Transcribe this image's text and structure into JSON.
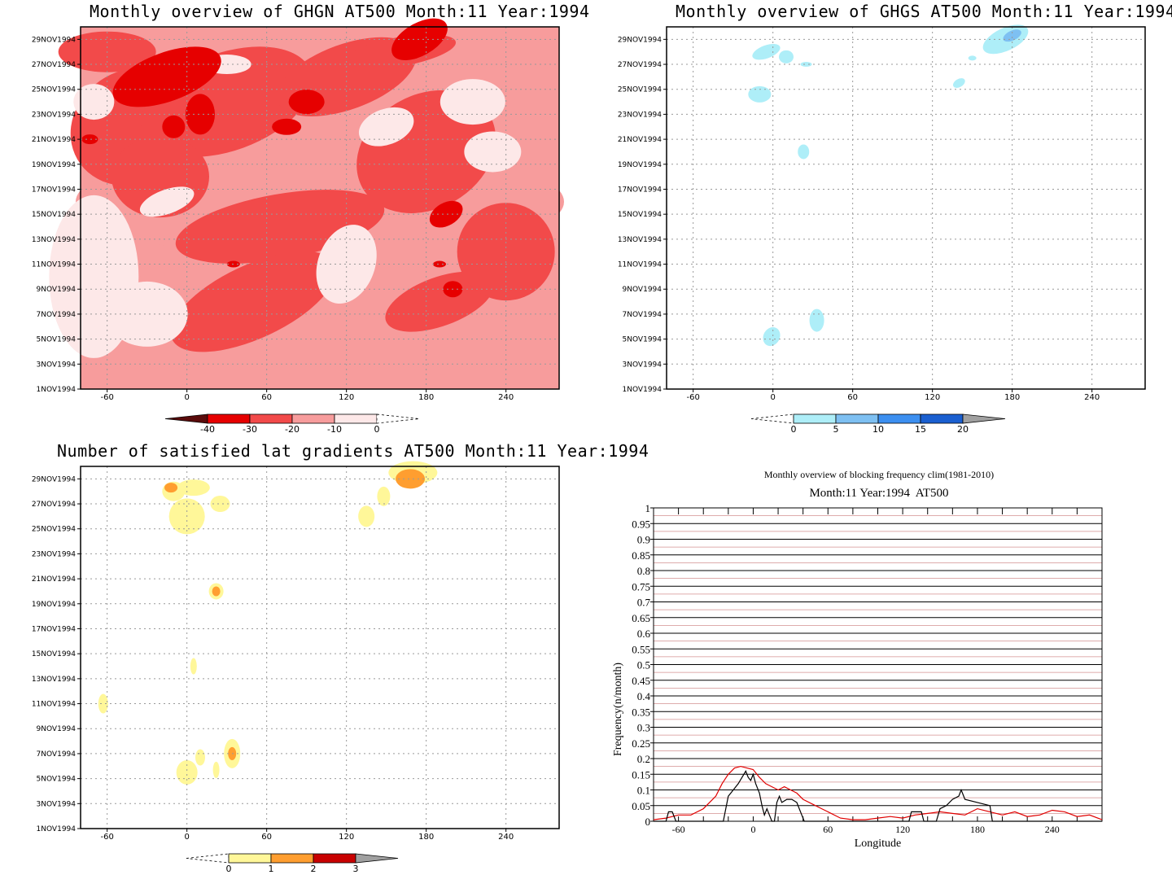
{
  "chart_data": [
    {
      "type": "heatmap",
      "title": "Monthly overview of GHGN AT500 Month:11 Year:1994",
      "x_ticks": [
        "-60",
        "0",
        "60",
        "120",
        "180",
        "240"
      ],
      "y_ticks": [
        "1NOV1994",
        "3NOV1994",
        "5NOV1994",
        "7NOV1994",
        "9NOV1994",
        "11NOV1994",
        "13NOV1994",
        "15NOV1994",
        "17NOV1994",
        "19NOV1994",
        "21NOV1994",
        "23NOV1994",
        "25NOV1994",
        "27NOV1994",
        "29NOV1994"
      ],
      "colorbar": {
        "labels": [
          "-40",
          "-30",
          "-20",
          "-10",
          "0"
        ],
        "colors": [
          "#5a0b0b",
          "#e60000",
          "#f24a4a",
          "#f79c9c",
          "#fde8e8"
        ]
      },
      "xlim": [
        -80,
        280
      ],
      "ylim": [
        1,
        30
      ]
    },
    {
      "type": "heatmap",
      "title": "Monthly overview of GHGS AT500 Month:11 Year:1994",
      "x_ticks": [
        "-60",
        "0",
        "60",
        "120",
        "180",
        "240"
      ],
      "y_ticks": [
        "1NOV1994",
        "3NOV1994",
        "5NOV1994",
        "7NOV1994",
        "9NOV1994",
        "11NOV1994",
        "13NOV1994",
        "15NOV1994",
        "17NOV1994",
        "19NOV1994",
        "21NOV1994",
        "23NOV1994",
        "25NOV1994",
        "27NOV1994",
        "29NOV1994"
      ],
      "colorbar": {
        "labels": [
          "0",
          "5",
          "10",
          "15",
          "20"
        ],
        "colors": [
          "#aeeef8",
          "#7ec0f2",
          "#3c8ff0",
          "#1a5fd0",
          "#a0a0a0"
        ]
      },
      "xlim": [
        -80,
        280
      ],
      "ylim": [
        1,
        30
      ]
    },
    {
      "type": "heatmap",
      "title": "Number of satisfied lat gradients AT500 Month:11 Year:1994",
      "x_ticks": [
        "-60",
        "0",
        "60",
        "120",
        "180",
        "240"
      ],
      "y_ticks": [
        "1NOV1994",
        "3NOV1994",
        "5NOV1994",
        "7NOV1994",
        "9NOV1994",
        "11NOV1994",
        "13NOV1994",
        "15NOV1994",
        "17NOV1994",
        "19NOV1994",
        "21NOV1994",
        "23NOV1994",
        "25NOV1994",
        "27NOV1994",
        "29NOV1994"
      ],
      "colorbar": {
        "labels": [
          "0",
          "1",
          "2",
          "3"
        ],
        "colors": [
          "#fff799",
          "#ff9e30",
          "#c80000",
          "#a0a0a0"
        ]
      },
      "xlim": [
        -80,
        280
      ],
      "ylim": [
        1,
        30
      ]
    },
    {
      "type": "line",
      "title": "Monthly overview of blocking frequency clim(1981-2010)",
      "subtitle": "Month:11 Year:1994  AT500",
      "xlabel": "Longitude",
      "ylabel": "Frequency(n/month)",
      "xlim": [
        -80,
        280
      ],
      "ylim": [
        0,
        1
      ],
      "x_ticks": [
        "-60",
        "0",
        "60",
        "120",
        "180",
        "240"
      ],
      "y_ticks": [
        "0",
        "0.05",
        "0.1",
        "0.15",
        "0.2",
        "0.25",
        "0.3",
        "0.35",
        "0.4",
        "0.45",
        "0.5",
        "0.55",
        "0.6",
        "0.65",
        "0.7",
        "0.75",
        "0.8",
        "0.85",
        "0.9",
        "0.95",
        "1"
      ],
      "series": [
        {
          "color": "#e00000",
          "x": [
            -80,
            -70,
            -60,
            -50,
            -40,
            -30,
            -25,
            -20,
            -15,
            -10,
            -5,
            0,
            5,
            10,
            15,
            20,
            25,
            30,
            35,
            40,
            50,
            55,
            60,
            70,
            80,
            90,
            100,
            110,
            120,
            130,
            140,
            150,
            160,
            170,
            180,
            190,
            200,
            210,
            220,
            230,
            240,
            250,
            260,
            270,
            280
          ],
          "y": [
            0.005,
            0.01,
            0.02,
            0.02,
            0.04,
            0.08,
            0.12,
            0.15,
            0.17,
            0.175,
            0.17,
            0.165,
            0.14,
            0.12,
            0.11,
            0.1,
            0.11,
            0.1,
            0.09,
            0.07,
            0.05,
            0.04,
            0.03,
            0.01,
            0.005,
            0.005,
            0.01,
            0.015,
            0.01,
            0.02,
            0.025,
            0.03,
            0.025,
            0.02,
            0.04,
            0.03,
            0.02,
            0.03,
            0.015,
            0.02,
            0.035,
            0.03,
            0.015,
            0.02,
            0.005
          ]
        },
        {
          "color": "#000000",
          "x": [
            -80,
            -70,
            -68,
            -65,
            -62,
            -60,
            -40,
            -24,
            -20,
            -16,
            -12,
            -9,
            -6,
            -4,
            -2,
            0,
            2,
            5,
            7,
            9,
            11,
            13,
            15,
            17,
            19,
            21,
            23,
            27,
            31,
            35,
            39,
            41,
            125,
            127,
            135,
            137,
            147,
            150,
            155,
            160,
            165,
            167,
            170,
            180,
            190,
            192,
            280
          ],
          "y": [
            0,
            0,
            0.03,
            0.03,
            0,
            0,
            0,
            0,
            0.08,
            0.1,
            0.12,
            0.14,
            0.16,
            0.14,
            0.13,
            0.15,
            0.12,
            0.09,
            0.05,
            0.02,
            0.04,
            0.02,
            0,
            0,
            0.06,
            0.08,
            0.06,
            0.07,
            0.07,
            0.06,
            0.02,
            0,
            0,
            0.03,
            0.03,
            0,
            0,
            0.04,
            0.05,
            0.07,
            0.08,
            0.1,
            0.07,
            0.06,
            0.05,
            0,
            0
          ]
        }
      ]
    }
  ]
}
